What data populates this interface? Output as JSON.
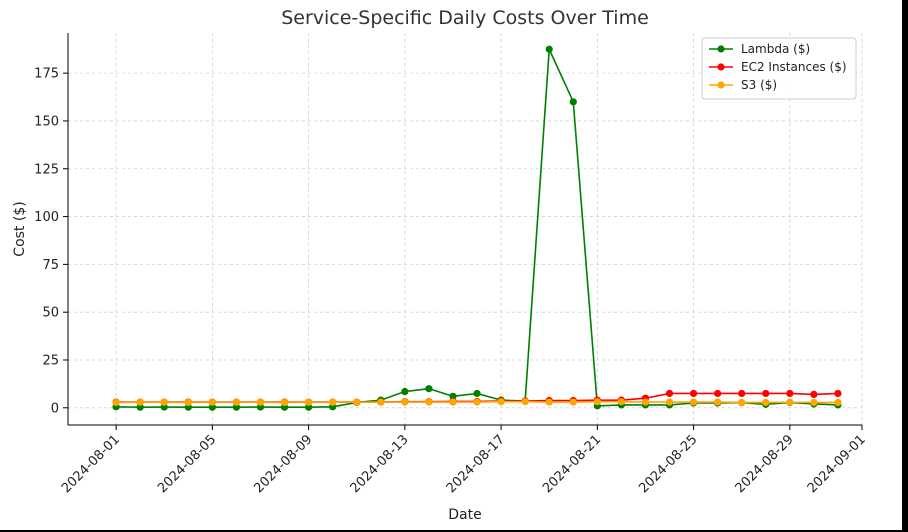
{
  "chart_data": {
    "type": "line",
    "title": "Service-Specific Daily Costs Over Time",
    "xlabel": "Date",
    "ylabel": "Cost ($)",
    "x_start": "2024-07-30",
    "x_end": "2024-09-01",
    "ylim": [
      -9,
      196
    ],
    "yticks": [
      0,
      25,
      50,
      75,
      100,
      125,
      150,
      175
    ],
    "xticks": [
      "2024-08-01",
      "2024-08-05",
      "2024-08-09",
      "2024-08-13",
      "2024-08-17",
      "2024-08-21",
      "2024-08-25",
      "2024-08-29",
      "2024-09-01"
    ],
    "grid": true,
    "legend_position": "top-right",
    "x": [
      "2024-08-01",
      "2024-08-02",
      "2024-08-03",
      "2024-08-04",
      "2024-08-05",
      "2024-08-06",
      "2024-08-07",
      "2024-08-08",
      "2024-08-09",
      "2024-08-10",
      "2024-08-11",
      "2024-08-12",
      "2024-08-13",
      "2024-08-14",
      "2024-08-15",
      "2024-08-16",
      "2024-08-17",
      "2024-08-18",
      "2024-08-19",
      "2024-08-20",
      "2024-08-21",
      "2024-08-22",
      "2024-08-23",
      "2024-08-24",
      "2024-08-25",
      "2024-08-26",
      "2024-08-27",
      "2024-08-28",
      "2024-08-29",
      "2024-08-30",
      "2024-08-31"
    ],
    "series": [
      {
        "name": "Lambda ($)",
        "color": "#008000",
        "values": [
          0.5,
          0.3,
          0.4,
          0.3,
          0.3,
          0.3,
          0.4,
          0.3,
          0.3,
          0.5,
          2.8,
          4.0,
          8.5,
          10.0,
          6.0,
          7.5,
          4.0,
          3.5,
          187.5,
          160.0,
          1.0,
          1.5,
          1.5,
          1.5,
          2.5,
          2.5,
          2.7,
          1.8,
          2.8,
          2.0,
          1.5
        ]
      },
      {
        "name": "EC2 Instances ($)",
        "color": "#ff0000",
        "values": [
          3.0,
          3.0,
          3.0,
          3.0,
          3.0,
          3.0,
          3.0,
          3.0,
          3.0,
          3.0,
          3.0,
          3.0,
          3.2,
          3.2,
          3.3,
          3.3,
          3.5,
          3.5,
          3.8,
          3.8,
          4.0,
          4.0,
          5.0,
          7.5,
          7.5,
          7.5,
          7.5,
          7.5,
          7.5,
          7.0,
          7.5
        ]
      },
      {
        "name": "S3 ($)",
        "color": "#ffa500",
        "values": [
          2.8,
          2.9,
          2.9,
          2.8,
          2.9,
          2.9,
          2.9,
          2.8,
          2.9,
          2.9,
          2.9,
          3.0,
          3.0,
          3.0,
          3.0,
          3.0,
          3.2,
          3.2,
          3.0,
          3.0,
          3.2,
          3.2,
          3.0,
          3.0,
          3.0,
          3.0,
          2.8,
          2.8,
          2.9,
          2.8,
          2.8
        ]
      }
    ]
  }
}
